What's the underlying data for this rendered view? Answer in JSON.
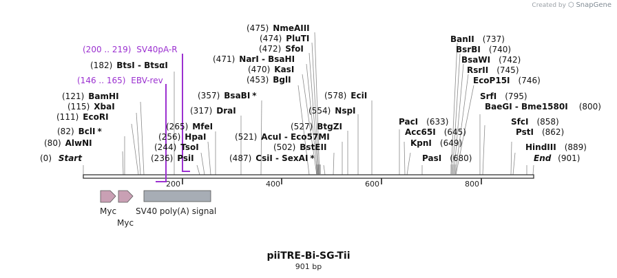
{
  "header": {
    "credit_text": "Created by",
    "brand": "SnapGene"
  },
  "map": {
    "name": "piiTRE-Bi-SG-Tii",
    "length_label": "901 bp",
    "start_label": "Start",
    "start_pos": "(0)",
    "end_label": "End",
    "end_pos": "(901)",
    "ruler_ticks": [
      "200",
      "400",
      "600",
      "800"
    ],
    "colors": {
      "enzyme_text": "#111111",
      "primer": "#9b30d0",
      "feature_myc": "#c9a0b4",
      "feature_sv40": "#a7adb5",
      "backbone": "#333333"
    }
  },
  "enzymes": [
    {
      "pos": "(80)",
      "name": "AlwNI",
      "star": ""
    },
    {
      "pos": "(82)",
      "name": "BclI",
      "star": "*"
    },
    {
      "pos": "(111)",
      "name": "EcoRI",
      "star": ""
    },
    {
      "pos": "(115)",
      "name": "XbaI",
      "star": ""
    },
    {
      "pos": "(121)",
      "name": "BamHI",
      "star": ""
    },
    {
      "pos": "(182)",
      "name": "BtsI - BtsαI",
      "star": ""
    },
    {
      "pos": "(236)",
      "name": "PsiI",
      "star": ""
    },
    {
      "pos": "(244)",
      "name": "TsoI",
      "star": ""
    },
    {
      "pos": "(256)",
      "name": "HpaI",
      "star": ""
    },
    {
      "pos": "(265)",
      "name": "MfeI",
      "star": ""
    },
    {
      "pos": "(317)",
      "name": "DraI",
      "star": ""
    },
    {
      "pos": "(357)",
      "name": "BsaBI",
      "star": "*"
    },
    {
      "pos": "(487)",
      "name": "CsiI - SexAI",
      "star": "*"
    },
    {
      "pos": "(521)",
      "name": "AcuI - Eco57MI",
      "star": ""
    },
    {
      "pos": "(502)",
      "name": "BstEII",
      "star": ""
    },
    {
      "pos": "(527)",
      "name": "BtgZI",
      "star": ""
    },
    {
      "pos": "(453)",
      "name": "BglI",
      "star": ""
    },
    {
      "pos": "(470)",
      "name": "KasI",
      "star": ""
    },
    {
      "pos": "(471)",
      "name": "NarI - BsaHI",
      "star": ""
    },
    {
      "pos": "(472)",
      "name": "SfoI",
      "star": ""
    },
    {
      "pos": "(474)",
      "name": "PluTI",
      "star": ""
    },
    {
      "pos": "(475)",
      "name": "NmeAIII",
      "star": ""
    },
    {
      "pos": "(554)",
      "name": "NspI",
      "star": ""
    },
    {
      "pos": "(578)",
      "name": "EciI",
      "star": ""
    },
    {
      "pos": "(633)",
      "name": "PacI",
      "star": ""
    },
    {
      "pos": "(645)",
      "name": "Acc65I",
      "star": ""
    },
    {
      "pos": "(649)",
      "name": "KpnI",
      "star": ""
    },
    {
      "pos": "(680)",
      "name": "PasI",
      "star": ""
    },
    {
      "pos": "(737)",
      "name": "BanII",
      "star": ""
    },
    {
      "pos": "(740)",
      "name": "BsrBI",
      "star": ""
    },
    {
      "pos": "(742)",
      "name": "BsaWI",
      "star": ""
    },
    {
      "pos": "(745)",
      "name": "RsrII",
      "star": ""
    },
    {
      "pos": "(746)",
      "name": "EcoP15I",
      "star": ""
    },
    {
      "pos": "(795)",
      "name": "SrfI",
      "star": ""
    },
    {
      "pos": "(800)",
      "name": "BaeGI - Bme1580I",
      "star": ""
    },
    {
      "pos": "(858)",
      "name": "SfcI",
      "star": ""
    },
    {
      "pos": "(862)",
      "name": "PstI",
      "star": ""
    },
    {
      "pos": "(889)",
      "name": "HindIII",
      "star": ""
    }
  ],
  "primers": [
    {
      "range": "(200 .. 219)",
      "name": "SV40pA-R"
    },
    {
      "range": "(146 .. 165)",
      "name": "EBV-rev"
    }
  ],
  "features": [
    {
      "name": "Myc"
    },
    {
      "name": "Myc"
    },
    {
      "name": "SV40 poly(A) signal"
    }
  ]
}
